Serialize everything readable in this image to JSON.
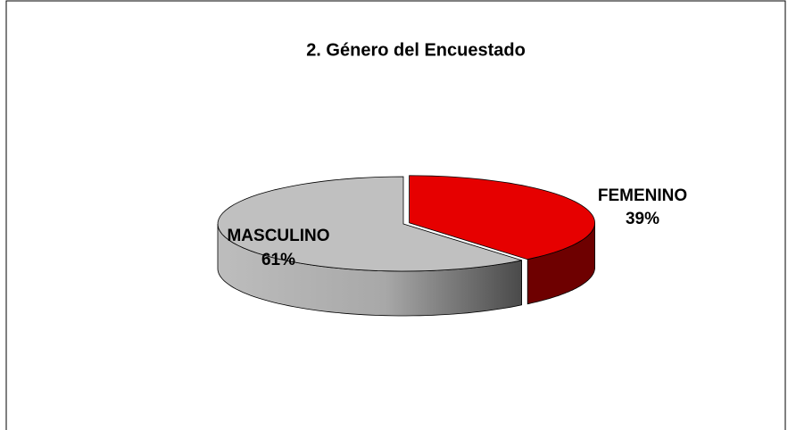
{
  "chart_data": {
    "type": "pie",
    "title": "2.  Género del Encuestado",
    "categories": [
      "FEMENINO",
      "MASCULINO"
    ],
    "values": [
      39,
      61
    ],
    "value_labels": [
      "39%",
      "61%"
    ],
    "colors": [
      "#e60000",
      "#c0c0c0"
    ]
  }
}
